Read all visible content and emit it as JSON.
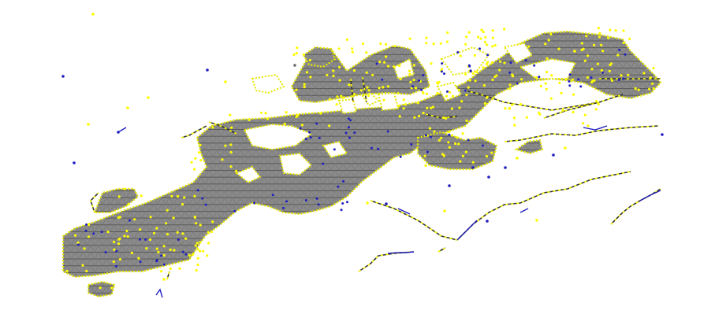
{
  "figure": {
    "description_visible_text": "",
    "colors": {
      "background": "#ffffff",
      "mesh_edge": "#555555",
      "mesh_fill": "#8a8a8a",
      "mesh_triangle_line": "#202020",
      "yellow_node": "#ffff00",
      "yellow_edge": "#e6e600",
      "blue_node": "#1f1fbf",
      "blue_edge": "#1f1fbf",
      "dark_edge": "#333333"
    },
    "layers": [
      "mesh-region",
      "yellow-boundary-nodes",
      "blue-nodes",
      "isolated-nodes",
      "branch-lines"
    ]
  }
}
